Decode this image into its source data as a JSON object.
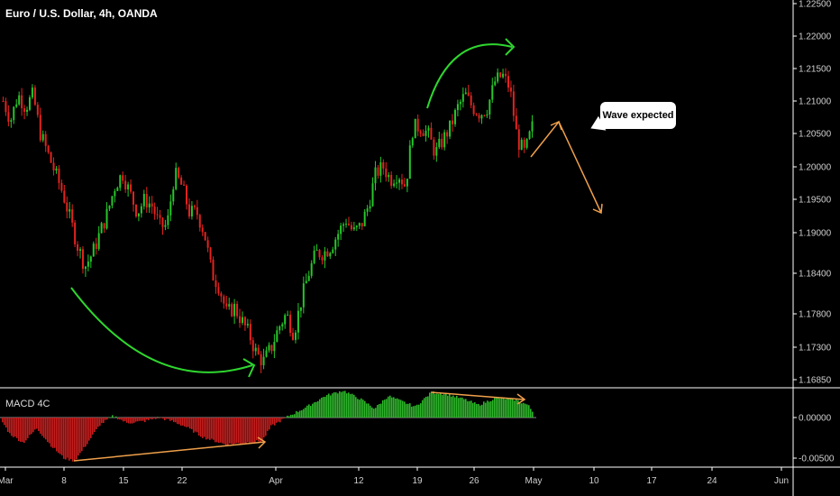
{
  "header": {
    "title": "Euro / U.S. Dollar, 4h, OANDA"
  },
  "macd": {
    "label": "MACD 4C"
  },
  "annotation": {
    "text": "Wave expected"
  },
  "colors": {
    "up": "#26c72a",
    "down": "#e3231f",
    "pos_hist": "#2db52a",
    "neg_hist": "#c81d1d",
    "curve": "#2fd62f",
    "arrow": "#f0a04a",
    "grid": "#ffffff"
  },
  "chart_data": {
    "type": "candlestick",
    "y_ticks": [
      "1.22500",
      "1.22000",
      "1.21500",
      "1.21000",
      "1.20500",
      "1.20000",
      "1.19500",
      "1.19000",
      "1.18400",
      "1.17800",
      "1.17300",
      "1.16850"
    ],
    "macd_ticks": [
      "0.00000",
      "-0.00500"
    ],
    "x_ticks": [
      "Mar",
      "8",
      "15",
      "22",
      "Apr",
      "12",
      "19",
      "26",
      "May",
      "10",
      "17",
      "24",
      "Jun"
    ],
    "price_path": [
      1.21,
      1.207,
      1.211,
      1.209,
      1.211,
      1.205,
      1.202,
      1.199,
      1.196,
      1.192,
      1.188,
      1.185,
      1.187,
      1.19,
      1.193,
      1.197,
      1.199,
      1.196,
      1.193,
      1.195,
      1.194,
      1.191,
      1.191,
      1.199,
      1.197,
      1.193,
      1.193,
      1.19,
      1.184,
      1.182,
      1.178,
      1.179,
      1.177,
      1.175,
      1.172,
      1.171,
      1.173,
      1.176,
      1.178,
      1.175,
      1.18,
      1.184,
      1.187,
      1.187,
      1.188,
      1.19,
      1.192,
      1.19,
      1.191,
      1.194,
      1.199,
      1.2,
      1.198,
      1.199,
      1.197,
      1.206,
      1.206,
      1.205,
      1.202,
      1.204,
      1.206,
      1.209,
      1.211,
      1.209,
      1.208,
      1.209,
      1.213,
      1.214,
      1.212,
      1.204,
      1.202,
      1.206
    ]
  }
}
